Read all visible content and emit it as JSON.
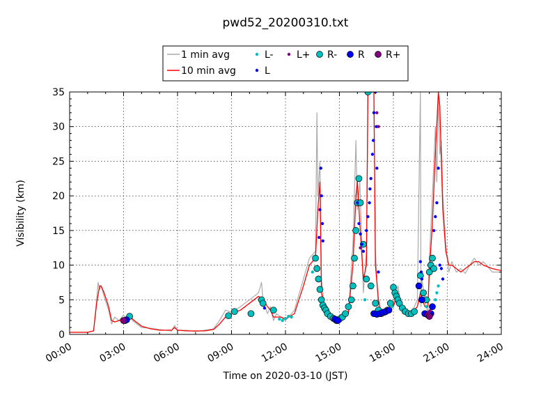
{
  "chart_data": {
    "type": "line",
    "title": "pwd52_20200310.txt",
    "xlabel": "Time on 2020-03-10 (JST)",
    "ylabel": "Visibility (km)",
    "xlim": [
      "00:00",
      "24:00"
    ],
    "ylim": [
      0,
      35
    ],
    "grid": true,
    "legend_position": "top-center",
    "x_tick_labels": [
      "00:00",
      "03:00",
      "06:00",
      "09:00",
      "12:00",
      "15:00",
      "18:00",
      "21:00",
      "24:00"
    ],
    "y_tick_labels": [
      "0",
      "5",
      "10",
      "15",
      "20",
      "25",
      "30",
      "35"
    ],
    "y_ticks": [
      0,
      5,
      10,
      15,
      20,
      25,
      30,
      35
    ],
    "legend": [
      {
        "label": "1 min avg",
        "kind": "line",
        "color": "#aaaaaa"
      },
      {
        "label": "10 min avg",
        "kind": "line",
        "color": "#ff0000"
      },
      {
        "label": "L-",
        "kind": "small-marker",
        "color": "#00bfbf"
      },
      {
        "label": "L",
        "kind": "small-marker",
        "color": "#0000ff"
      },
      {
        "label": "L+",
        "kind": "small-marker",
        "color": "#800080"
      },
      {
        "label": "R-",
        "kind": "large-marker",
        "color": "#00bfbf"
      },
      {
        "label": "R",
        "kind": "large-marker",
        "color": "#0000ff"
      },
      {
        "label": "R+",
        "kind": "large-marker",
        "color": "#800080"
      }
    ],
    "series": [
      {
        "name": "10 min avg",
        "color": "#ff0000",
        "x": [
          "00:00",
          "01:00",
          "01:20",
          "01:30",
          "01:40",
          "01:45",
          "01:55",
          "02:10",
          "02:20",
          "02:30",
          "02:45",
          "03:00",
          "03:10",
          "03:20",
          "03:30",
          "04:00",
          "04:30",
          "05:00",
          "05:40",
          "05:50",
          "06:00",
          "06:30",
          "07:00",
          "07:30",
          "08:00",
          "08:20",
          "08:40",
          "09:00",
          "09:30",
          "10:00",
          "10:30",
          "10:45",
          "11:00",
          "11:10",
          "11:20",
          "11:30",
          "11:45",
          "12:00",
          "12:30",
          "13:00",
          "13:20",
          "13:40",
          "13:48",
          "13:55",
          "14:00",
          "14:10",
          "14:20",
          "14:40",
          "15:00",
          "15:20",
          "15:30",
          "15:45",
          "15:55",
          "16:00",
          "16:08",
          "16:20",
          "16:30",
          "16:35",
          "16:45",
          "16:55",
          "17:00",
          "17:10",
          "17:20",
          "17:30",
          "17:45",
          "18:00",
          "18:15",
          "18:30",
          "18:45",
          "19:00",
          "19:20",
          "19:30",
          "19:45",
          "19:55",
          "20:00",
          "20:10",
          "20:20",
          "20:30",
          "20:35",
          "20:40",
          "20:45",
          "20:55",
          "21:05",
          "21:15",
          "21:30",
          "21:45",
          "22:00",
          "22:15",
          "22:30",
          "22:45",
          "23:00",
          "23:30",
          "24:00"
        ],
        "y": [
          0.3,
          0.3,
          0.5,
          4.5,
          7.0,
          7.0,
          6.0,
          4.0,
          2.0,
          1.8,
          2.0,
          2.2,
          2.5,
          2.7,
          2.2,
          1.2,
          0.8,
          0.6,
          0.6,
          1.0,
          0.6,
          0.5,
          0.5,
          0.5,
          0.7,
          1.5,
          2.5,
          3.0,
          3.5,
          4.5,
          5.5,
          5.0,
          4.0,
          3.5,
          2.5,
          2.5,
          2.5,
          2.2,
          3.0,
          7.0,
          10.0,
          11.0,
          18.0,
          22.0,
          6.0,
          4.0,
          3.0,
          2.2,
          2.0,
          2.5,
          3.0,
          10.0,
          20.0,
          22.0,
          16.0,
          8.0,
          10.0,
          35.0,
          35.0,
          35.0,
          10.0,
          5.0,
          3.0,
          3.0,
          3.5,
          4.0,
          6.0,
          3.5,
          3.0,
          3.0,
          4.0,
          6.0,
          4.0,
          4.0,
          9.0,
          16.0,
          26.0,
          35.0,
          33.0,
          25.0,
          18.0,
          12.0,
          10.0,
          10.0,
          9.5,
          9.0,
          9.5,
          10.0,
          10.5,
          10.5,
          10.0,
          9.5,
          9.2
        ]
      },
      {
        "name": "1 min avg",
        "color": "#aaaaaa",
        "x": [
          "00:00",
          "01:00",
          "01:20",
          "01:30",
          "01:35",
          "01:40",
          "01:45",
          "01:55",
          "02:10",
          "02:20",
          "02:30",
          "02:45",
          "03:00",
          "03:10",
          "03:20",
          "03:30",
          "04:00",
          "04:30",
          "05:00",
          "05:40",
          "05:50",
          "06:00",
          "06:30",
          "07:00",
          "07:30",
          "08:00",
          "08:20",
          "08:40",
          "09:00",
          "09:30",
          "10:00",
          "10:30",
          "10:40",
          "10:45",
          "11:00",
          "11:10",
          "11:20",
          "11:30",
          "11:45",
          "12:00",
          "12:30",
          "13:00",
          "13:20",
          "13:40",
          "13:45",
          "13:48",
          "13:55",
          "14:00",
          "14:10",
          "14:20",
          "14:40",
          "15:00",
          "15:20",
          "15:30",
          "15:45",
          "15:55",
          "16:00",
          "16:08",
          "16:20",
          "16:30",
          "16:35",
          "16:45",
          "16:55",
          "17:00",
          "17:10",
          "17:20",
          "17:30",
          "17:45",
          "18:00",
          "18:15",
          "18:30",
          "18:45",
          "19:00",
          "19:20",
          "19:30",
          "19:32",
          "19:35",
          "19:45",
          "19:55",
          "20:00",
          "20:10",
          "20:20",
          "20:25",
          "20:30",
          "20:35",
          "20:40",
          "20:45",
          "20:55",
          "21:05",
          "21:15",
          "21:30",
          "21:45",
          "22:00",
          "22:15",
          "22:30",
          "22:45",
          "23:00",
          "23:30",
          "24:00"
        ],
        "y": [
          0.3,
          0.3,
          0.5,
          5.0,
          7.5,
          6.5,
          7.0,
          5.5,
          3.5,
          1.5,
          2.5,
          2.0,
          2.8,
          2.2,
          3.0,
          2.0,
          1.0,
          0.9,
          0.7,
          0.5,
          1.3,
          0.6,
          0.6,
          0.4,
          0.6,
          0.8,
          2.0,
          3.5,
          3.2,
          4.0,
          5.0,
          6.0,
          7.5,
          5.0,
          3.0,
          4.0,
          2.0,
          3.0,
          2.5,
          2.0,
          3.5,
          8.0,
          11.0,
          12.0,
          32.0,
          20.0,
          25.0,
          8.0,
          3.5,
          2.8,
          2.0,
          1.8,
          2.8,
          3.2,
          13.0,
          28.0,
          18.0,
          22.0,
          6.0,
          12.0,
          35.0,
          35.0,
          35.0,
          12.0,
          4.0,
          3.0,
          2.8,
          3.2,
          4.5,
          7.0,
          3.0,
          3.0,
          3.0,
          5.0,
          35.0,
          4.0,
          8.0,
          5.0,
          3.0,
          11.0,
          20.0,
          30.0,
          22.0,
          35.0,
          26.0,
          28.0,
          20.0,
          13.0,
          9.0,
          10.5,
          9.0,
          9.5,
          8.8,
          10.0,
          11.0,
          10.0,
          10.5,
          9.0,
          9.0
        ]
      },
      {
        "name": "R-",
        "color": "#00bfbf",
        "marker": "large",
        "x": [
          "03:20",
          "08:50",
          "09:10",
          "10:05",
          "10:40",
          "10:45",
          "11:20",
          "13:40",
          "13:45",
          "13:50",
          "13:55",
          "14:00",
          "14:05",
          "14:10",
          "14:15",
          "14:20",
          "14:30",
          "14:40",
          "14:50",
          "15:00",
          "15:10",
          "15:20",
          "15:30",
          "15:40",
          "15:45",
          "15:50",
          "15:55",
          "16:00",
          "16:05",
          "16:10",
          "16:20",
          "16:30",
          "16:35",
          "16:45",
          "17:00",
          "17:10",
          "17:20",
          "17:30",
          "17:40",
          "17:50",
          "18:00",
          "18:05",
          "18:10",
          "18:15",
          "18:20",
          "18:30",
          "18:40",
          "18:50",
          "19:00",
          "19:10",
          "19:30",
          "19:40",
          "19:50",
          "20:00",
          "20:05",
          "20:10",
          "20:15"
        ],
        "y": [
          2.6,
          2.7,
          3.3,
          3.0,
          5.0,
          4.5,
          3.5,
          11.0,
          9.5,
          8.0,
          6.5,
          5.0,
          4.2,
          3.8,
          3.5,
          3.0,
          2.6,
          2.3,
          2.0,
          2.2,
          2.5,
          3.0,
          4.0,
          5.0,
          7.0,
          11.0,
          15.0,
          19.0,
          22.5,
          19.0,
          13.0,
          8.0,
          35.0,
          7.0,
          4.5,
          3.5,
          3.0,
          3.2,
          3.5,
          4.5,
          6.8,
          6.0,
          5.5,
          5.0,
          4.5,
          3.8,
          3.3,
          3.0,
          3.0,
          3.3,
          8.5,
          6.0,
          5.0,
          9.0,
          10.0,
          11.0,
          9.5
        ]
      },
      {
        "name": "R",
        "color": "#0000ff",
        "marker": "large",
        "x": [
          "03:05",
          "03:10",
          "14:45",
          "14:55",
          "16:55",
          "17:05",
          "17:15",
          "17:25",
          "17:35",
          "17:45",
          "19:25",
          "19:35",
          "19:45",
          "20:05",
          "20:10"
        ],
        "y": [
          2.0,
          2.1,
          2.2,
          2.0,
          3.0,
          2.9,
          3.0,
          3.2,
          3.3,
          3.5,
          7.0,
          5.0,
          3.0,
          3.0,
          4.0
        ]
      },
      {
        "name": "R+",
        "color": "#800080",
        "marker": "large",
        "x": [
          "03:00",
          "19:55",
          "20:00"
        ],
        "y": [
          2.0,
          2.8,
          2.6
        ]
      },
      {
        "name": "L-",
        "color": "#00bfbf",
        "marker": "small",
        "x": [
          "11:40",
          "11:50",
          "12:00",
          "12:10",
          "12:20",
          "13:30",
          "16:25",
          "16:45",
          "17:55",
          "19:50",
          "20:20",
          "20:25",
          "20:30"
        ],
        "y": [
          2.2,
          2.0,
          2.3,
          2.6,
          2.5,
          9.0,
          5.0,
          35.0,
          4.0,
          4.0,
          5.0,
          6.0,
          7.0
        ]
      },
      {
        "name": "L",
        "color": "#0000ff",
        "marker": "small",
        "x": [
          "10:50",
          "13:52",
          "13:55",
          "13:58",
          "14:00",
          "14:03",
          "14:05",
          "16:00",
          "16:05",
          "16:10",
          "16:15",
          "16:20",
          "16:30",
          "16:35",
          "16:40",
          "16:42",
          "16:45",
          "16:50",
          "16:53",
          "16:55",
          "17:00",
          "17:03",
          "17:05",
          "17:10",
          "19:30",
          "19:33",
          "19:35",
          "20:15",
          "20:20",
          "20:25",
          "20:30",
          "20:35",
          "20:40",
          "20:45"
        ],
        "y": [
          3.8,
          14.0,
          18.0,
          24.0,
          20.0,
          16.0,
          13.5,
          19.0,
          16.0,
          14.5,
          13.0,
          12.0,
          15.0,
          17.0,
          19.0,
          21.0,
          22.5,
          26.0,
          28.0,
          32.0,
          35.0,
          30.0,
          24.0,
          9.0,
          10.5,
          9.0,
          8.0,
          15.0,
          17.0,
          19.0,
          24.0,
          10.0,
          9.5,
          8.0
        ]
      },
      {
        "name": "L+",
        "color": "#800080",
        "marker": "small",
        "x": [
          "16:10",
          "17:05",
          "17:10",
          "19:58",
          "20:02"
        ],
        "y": [
          12.5,
          32.0,
          30.0,
          3.2,
          3.4
        ]
      }
    ]
  }
}
